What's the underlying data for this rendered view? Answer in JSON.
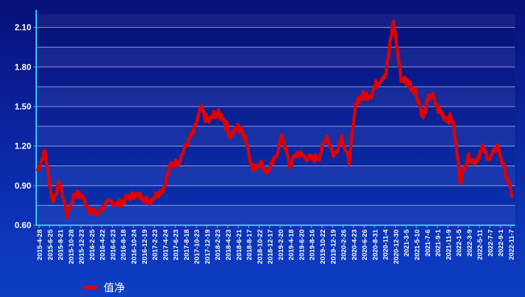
{
  "chart_data": {
    "type": "line",
    "title": "",
    "xlabel": "",
    "ylabel": "",
    "ylim": [
      0.6,
      2.2
    ],
    "yticks": [
      "0.60",
      "0.90",
      "1.20",
      "1.50",
      "1.80",
      "2.10"
    ],
    "x_ticks": [
      "2015-4-28",
      "2015-6-25",
      "2015-8-21",
      "2015-10-28",
      "2015-12-23",
      "2016-2-25",
      "2016-4-22",
      "2016-6-23",
      "2016-8-18",
      "2016-10-24",
      "2016-12-19",
      "2017-2-23",
      "2017-4-24",
      "2017-6-23",
      "2017-8-18",
      "2017-10-23",
      "2017-12-19",
      "2018-2-23",
      "2018-4-23",
      "2018-6-21",
      "2018-8-17",
      "2018-10-22",
      "2018-12-17",
      "2019-2-20",
      "2019-4-18",
      "2019-6-20",
      "2019-8-16",
      "2019-10-22",
      "2019-12-19",
      "2020-2-26",
      "2020-4-23",
      "2020-6-26",
      "2020-8-31",
      "2020-11-4",
      "2020-12-30",
      "2021-3-5",
      "2021-5-10",
      "2021-7-6",
      "2021-9-1",
      "2021-11-9",
      "2022-1-5",
      "2022-3-9",
      "2022-5-11",
      "2022-7-7",
      "2022-9-1",
      "2022-11-7"
    ],
    "series": [
      {
        "name": "值净",
        "color": "#e00000",
        "values": [
          1.02,
          1.16,
          0.78,
          0.92,
          0.68,
          0.84,
          0.82,
          0.72,
          0.68,
          0.75,
          0.78,
          0.76,
          0.8,
          0.83,
          0.82,
          0.78,
          0.83,
          0.88,
          1.06,
          1.08,
          1.2,
          1.3,
          1.48,
          1.38,
          1.45,
          1.42,
          1.28,
          1.34,
          1.28,
          1.02,
          1.08,
          1.0,
          1.1,
          1.28,
          1.05,
          1.15,
          1.12,
          1.1,
          1.12,
          1.28,
          1.12,
          1.27,
          1.08,
          1.55,
          1.58,
          1.6,
          1.7,
          1.76,
          2.15,
          1.72,
          1.68,
          1.62,
          1.42,
          1.6,
          1.48,
          1.42,
          1.4,
          0.94,
          1.12,
          1.08,
          1.18,
          1.1,
          1.2,
          1.02,
          0.82
        ]
      }
    ],
    "grid": true,
    "legend_position": "bottom-left"
  },
  "legend": {
    "label": "值净",
    "color": "#e00000"
  },
  "colors": {
    "line": "#e00000",
    "grid": "#ffffff",
    "axis": "#35c8ff"
  }
}
